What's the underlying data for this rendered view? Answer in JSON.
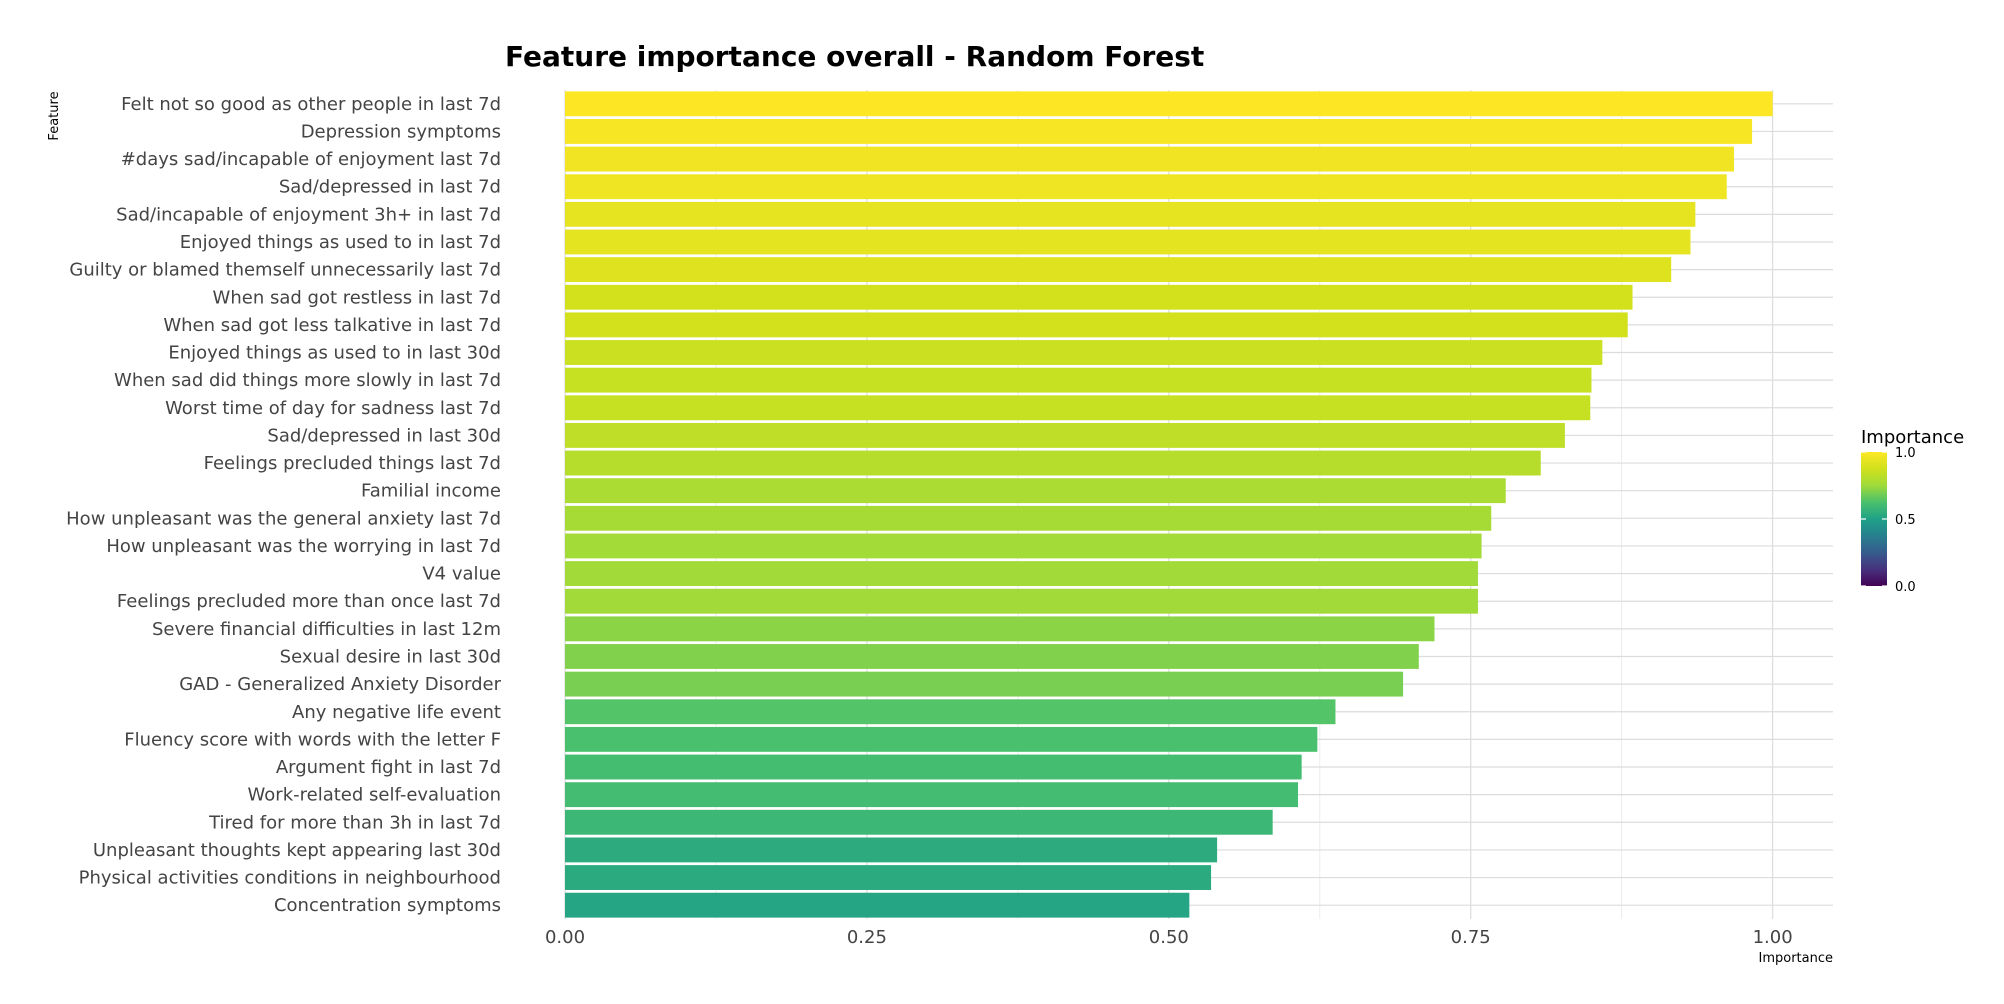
{
  "chart_data": {
    "type": "bar",
    "orientation": "horizontal",
    "title": "Feature importance overall - Random Forest",
    "xlabel": "Importance",
    "ylabel": "Feature",
    "xlim": [
      0,
      1.05
    ],
    "x_ticks": [
      "0.00",
      "0.25",
      "0.50",
      "0.75",
      "1.00"
    ],
    "x_tick_values": [
      0,
      0.25,
      0.5,
      0.75,
      1.0
    ],
    "grid": true,
    "legend": {
      "title": "Importance",
      "placement": "right",
      "colormap": "viridis",
      "ticks": [
        "1.0",
        "0.5",
        "0.0"
      ],
      "tick_values": [
        1.0,
        0.5,
        0.0
      ]
    },
    "categories": [
      "Felt not so good as other people in last 7d",
      "Depression symptoms",
      "#days sad/incapable of enjoyment last 7d",
      "Sad/depressed in last 7d",
      "Sad/incapable of enjoyment 3h+ in last 7d",
      "Enjoyed things as used to in last 7d",
      "Guilty or blamed themself unnecessarily last 7d",
      "When sad got restless in last 7d",
      "When sad got less talkative in last 7d",
      "Enjoyed things as used to in last 30d",
      "When sad did things more slowly in last 7d",
      "Worst time of day for sadness last 7d",
      "Sad/depressed in last 30d",
      "Feelings precluded things last 7d",
      "Familial income",
      "How unpleasant was the general anxiety last 7d",
      "How unpleasant was the worrying in last 7d",
      "V4 value",
      "Feelings precluded more than once last 7d",
      "Severe financial difficulties in last 12m",
      "Sexual desire in last 30d",
      "GAD - Generalized Anxiety Disorder",
      "Any negative life event",
      "Fluency score with words with the letter F",
      "Argument fight in last 7d",
      "Work-related self-evaluation",
      "Tired for more than 3h in last 7d",
      "Unpleasant thoughts kept appearing last 30d",
      "Physical activities conditions in neighbourhood",
      "Concentration symptoms"
    ],
    "values": [
      1.0,
      0.983,
      0.968,
      0.962,
      0.936,
      0.932,
      0.916,
      0.884,
      0.88,
      0.859,
      0.85,
      0.849,
      0.828,
      0.808,
      0.779,
      0.767,
      0.759,
      0.756,
      0.756,
      0.72,
      0.707,
      0.694,
      0.638,
      0.623,
      0.61,
      0.607,
      0.586,
      0.54,
      0.535,
      0.517
    ]
  }
}
